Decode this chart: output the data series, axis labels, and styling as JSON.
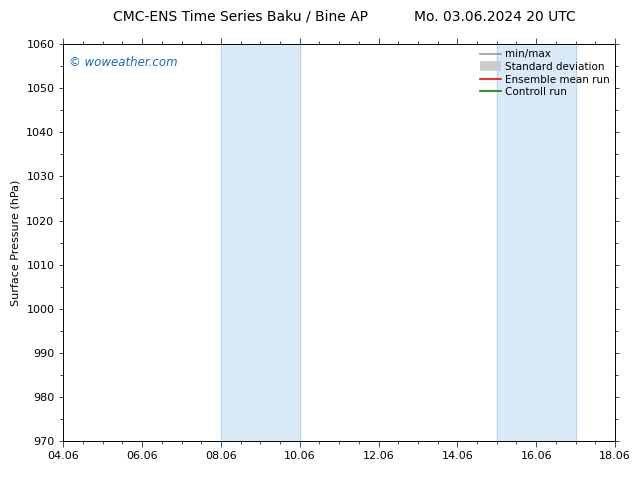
{
  "title_left": "CMC-ENS Time Series Baku / Bine AP",
  "title_right": "Mo. 03.06.2024 20 UTC",
  "ylabel": "Surface Pressure (hPa)",
  "ylim": [
    970,
    1060
  ],
  "yticks": [
    970,
    980,
    990,
    1000,
    1010,
    1020,
    1030,
    1040,
    1050,
    1060
  ],
  "xlim_start": 4.06,
  "xlim_end": 18.06,
  "xtick_labels": [
    "04.06",
    "06.06",
    "08.06",
    "10.06",
    "12.06",
    "14.06",
    "16.06",
    "18.06"
  ],
  "xtick_positions": [
    4.06,
    6.06,
    8.06,
    10.06,
    12.06,
    14.06,
    16.06,
    18.06
  ],
  "shaded_bands": [
    {
      "x_start": 8.06,
      "x_end": 10.06
    },
    {
      "x_start": 15.06,
      "x_end": 17.06
    }
  ],
  "shaded_color": "#daeaf7",
  "vline_color": "#b8d4ea",
  "watermark_text": "© woweather.com",
  "watermark_color": "#1a6bb5",
  "legend_entries": [
    {
      "label": "min/max",
      "color": "#999999",
      "lw": 1.2
    },
    {
      "label": "Standard deviation",
      "color": "#cccccc",
      "lw": 7
    },
    {
      "label": "Ensemble mean run",
      "color": "#ff0000",
      "lw": 1.2
    },
    {
      "label": "Controll run",
      "color": "#008000",
      "lw": 1.2
    }
  ],
  "bg_color": "#ffffff",
  "plot_bg_color": "#ffffff",
  "title_fontsize": 10,
  "axis_fontsize": 8,
  "tick_fontsize": 8,
  "legend_fontsize": 7.5
}
